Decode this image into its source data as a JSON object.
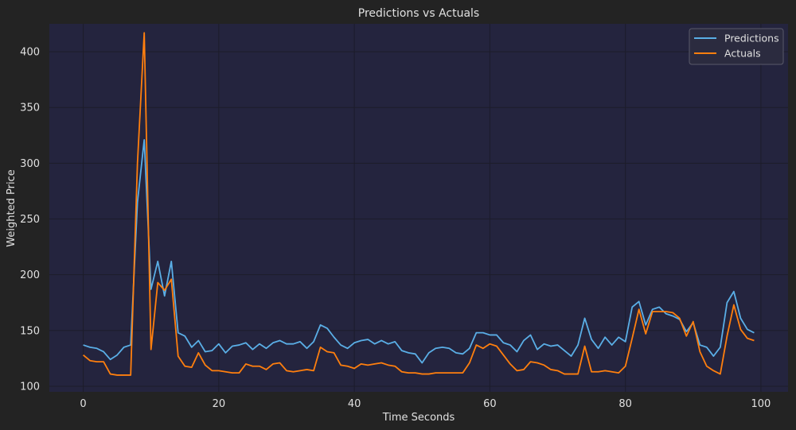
{
  "chart_data": {
    "type": "line",
    "title": "Predictions vs Actuals",
    "xlabel": "Time Seconds",
    "ylabel": "Weighted Price",
    "xlim": [
      -5,
      104
    ],
    "ylim": [
      95,
      425
    ],
    "xticks": [
      0,
      20,
      40,
      60,
      80,
      100
    ],
    "yticks": [
      100,
      150,
      200,
      250,
      300,
      350,
      400
    ],
    "grid": true,
    "legend_position": "top-right",
    "x": [
      0,
      1,
      2,
      3,
      4,
      5,
      6,
      7,
      8,
      9,
      10,
      11,
      12,
      13,
      14,
      15,
      16,
      17,
      18,
      19,
      20,
      21,
      22,
      23,
      24,
      25,
      26,
      27,
      28,
      29,
      30,
      31,
      32,
      33,
      34,
      35,
      36,
      37,
      38,
      39,
      40,
      41,
      42,
      43,
      44,
      45,
      46,
      47,
      48,
      49,
      50,
      51,
      52,
      53,
      54,
      55,
      56,
      57,
      58,
      59,
      60,
      61,
      62,
      63,
      64,
      65,
      66,
      67,
      68,
      69,
      70,
      71,
      72,
      73,
      74,
      75,
      76,
      77,
      78,
      79,
      80,
      81,
      82,
      83,
      84,
      85,
      86,
      87,
      88,
      89,
      90,
      91,
      92,
      93,
      94,
      95,
      96,
      97,
      98,
      99
    ],
    "series": [
      {
        "name": "Predictions",
        "color": "#5aaee6",
        "values": [
          137,
          135,
          134,
          131,
          124,
          128,
          135,
          137,
          265,
          321,
          187,
          212,
          181,
          212,
          148,
          145,
          135,
          141,
          131,
          132,
          138,
          130,
          136,
          137,
          139,
          133,
          138,
          134,
          139,
          141,
          138,
          138,
          140,
          134,
          140,
          155,
          152,
          144,
          137,
          134,
          139,
          141,
          142,
          138,
          141,
          138,
          140,
          132,
          130,
          129,
          121,
          130,
          134,
          135,
          134,
          130,
          129,
          134,
          148,
          148,
          146,
          146,
          139,
          137,
          131,
          141,
          146,
          133,
          138,
          136,
          137,
          132,
          127,
          137,
          161,
          142,
          134,
          144,
          137,
          144,
          140,
          171,
          176,
          155,
          169,
          171,
          165,
          163,
          160,
          149,
          157,
          137,
          135,
          127,
          135,
          175,
          185,
          161,
          151,
          148
        ]
      },
      {
        "name": "Actuals",
        "color": "#ff7f0e",
        "values": [
          128,
          123,
          122,
          122,
          111,
          110,
          110,
          110,
          300,
          417,
          133,
          193,
          186,
          196,
          127,
          118,
          117,
          130,
          119,
          114,
          114,
          113,
          112,
          112,
          120,
          118,
          118,
          115,
          120,
          121,
          114,
          113,
          114,
          115,
          114,
          135,
          131,
          130,
          119,
          118,
          116,
          120,
          119,
          120,
          121,
          119,
          118,
          113,
          112,
          112,
          111,
          111,
          112,
          112,
          112,
          112,
          112,
          121,
          137,
          134,
          138,
          136,
          128,
          120,
          114,
          115,
          122,
          121,
          119,
          115,
          114,
          111,
          111,
          111,
          136,
          113,
          113,
          114,
          113,
          112,
          118,
          143,
          169,
          147,
          167,
          167,
          167,
          166,
          161,
          145,
          158,
          131,
          118,
          114,
          111,
          145,
          173,
          151,
          143,
          141
        ]
      }
    ]
  }
}
